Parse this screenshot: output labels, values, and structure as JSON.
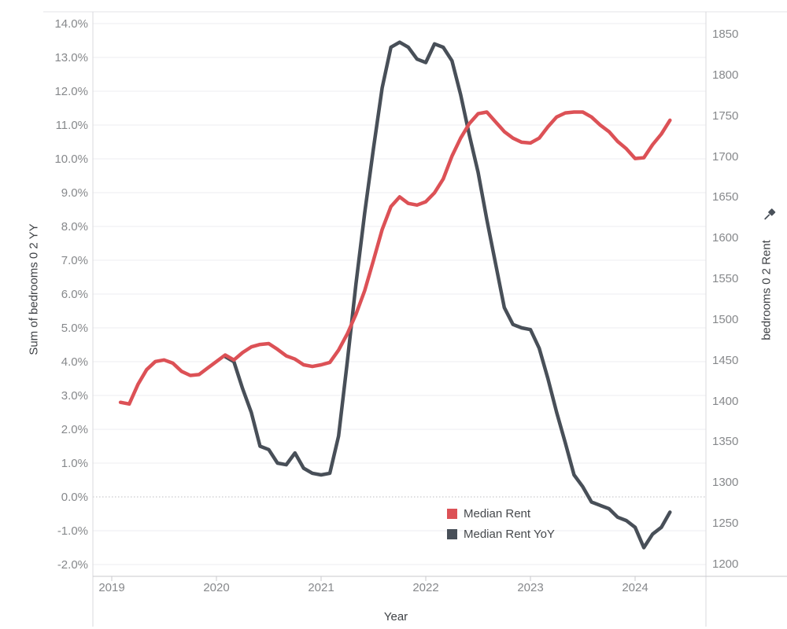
{
  "chart": {
    "title": "",
    "x_axis": {
      "title": "Year",
      "tick_labels": [
        "2019",
        "2020",
        "2021",
        "2022",
        "2023",
        "2024"
      ]
    },
    "left_axis": {
      "title": "Sum of bedrooms 0 2 YY",
      "tick_labels": [
        "14.0%",
        "13.0%",
        "12.0%",
        "11.0%",
        "10.0%",
        "9.0%",
        "8.0%",
        "7.0%",
        "6.0%",
        "5.0%",
        "4.0%",
        "3.0%",
        "2.0%",
        "1.0%",
        "0.0%",
        "-1.0%",
        "-2.0%"
      ]
    },
    "right_axis": {
      "title": "bedrooms 0 2 Rent",
      "tick_labels": [
        "1850",
        "1800",
        "1750",
        "1700",
        "1650",
        "1600",
        "1550",
        "1500",
        "1450",
        "1400",
        "1350",
        "1300",
        "1250",
        "1200"
      ],
      "pin_icon": "pushpin"
    },
    "legend": {
      "items": [
        {
          "label": "Median Rent",
          "color": "#dc5156"
        },
        {
          "label": "Median Rent YoY",
          "color": "#484f58"
        }
      ]
    }
  },
  "chart_data": {
    "type": "line",
    "title": "",
    "xlabel": "Year",
    "frequency": "monthly",
    "x_range": [
      "2019-02",
      "2024-05"
    ],
    "x_tick_labels": [
      "2019",
      "2020",
      "2021",
      "2022",
      "2023",
      "2024"
    ],
    "grid": "horizontal-only",
    "zero_line_style": "dotted",
    "legend_position": "inside-bottom-right",
    "left_axis": {
      "label": "Sum of bedrooms 0 2 YY",
      "unit": "percent",
      "min": -2.0,
      "max": 14.0,
      "tick_step": 1.0
    },
    "right_axis": {
      "label": "bedrooms 0 2 Rent",
      "unit": "rent-dollars",
      "min": 1200,
      "max": 1850,
      "tick_step": 50
    },
    "series": [
      {
        "name": "Median Rent",
        "axis": "right",
        "color": "#dc5156",
        "start_month": "2019-02",
        "monthly_values": [
          1398,
          1396,
          1420,
          1438,
          1448,
          1450,
          1446,
          1436,
          1431,
          1432,
          1440,
          1448,
          1456,
          1450,
          1459,
          1466,
          1469,
          1470,
          1463,
          1455,
          1451,
          1444,
          1442,
          1444,
          1447,
          1462,
          1482,
          1506,
          1535,
          1572,
          1610,
          1638,
          1650,
          1642,
          1640,
          1644,
          1655,
          1672,
          1700,
          1722,
          1740,
          1752,
          1754,
          1742,
          1730,
          1722,
          1717,
          1716,
          1722,
          1736,
          1748,
          1753,
          1754,
          1754,
          1748,
          1738,
          1730,
          1718,
          1709,
          1697,
          1698,
          1714,
          1727,
          1744
        ]
      },
      {
        "name": "Median Rent YoY",
        "axis": "left",
        "color": "#484f58",
        "start_month": "2020-02",
        "monthly_values": [
          4.15,
          4.0,
          3.2,
          2.5,
          1.5,
          1.4,
          1.0,
          0.95,
          1.3,
          0.85,
          0.7,
          0.65,
          0.7,
          1.8,
          4.0,
          6.3,
          8.4,
          10.3,
          12.1,
          13.3,
          13.45,
          13.3,
          12.95,
          12.85,
          13.4,
          13.3,
          12.9,
          11.9,
          10.7,
          9.6,
          8.2,
          6.9,
          5.6,
          5.1,
          5.0,
          4.95,
          4.4,
          3.5,
          2.5,
          1.6,
          0.65,
          0.3,
          -0.15,
          -0.25,
          -0.35,
          -0.6,
          -0.7,
          -0.9,
          -1.5,
          -1.1,
          -0.9,
          -0.45
        ]
      }
    ]
  }
}
